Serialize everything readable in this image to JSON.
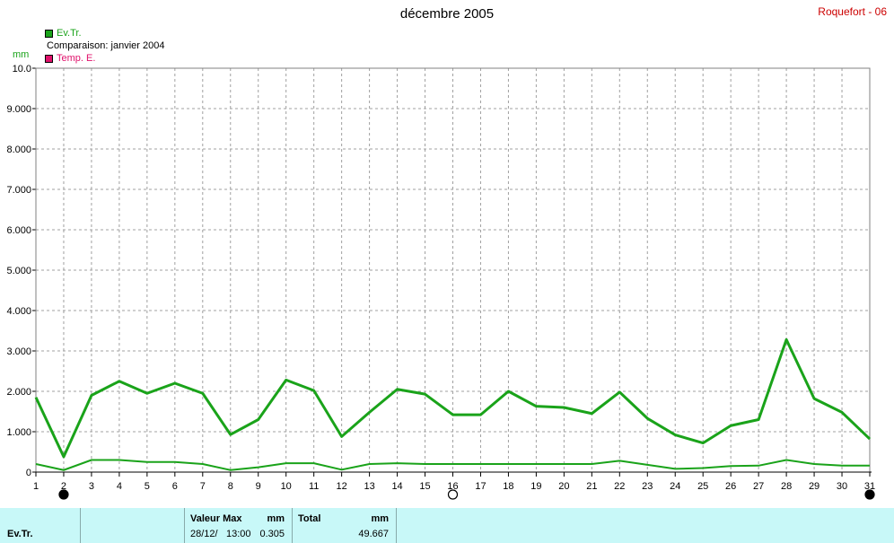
{
  "title": "décembre 2005",
  "station": "Roquefort - 06",
  "legend": [
    {
      "label": "Ev.Tr.",
      "color": "#1aa31a"
    },
    {
      "label": "Comparaison: janvier 2004",
      "color": null
    },
    {
      "label": "Temp. E.",
      "color": "#e0116b"
    }
  ],
  "unit": "mm",
  "chart_data": {
    "type": "line",
    "x": [
      1,
      2,
      3,
      4,
      5,
      6,
      7,
      8,
      9,
      10,
      11,
      12,
      13,
      14,
      15,
      16,
      17,
      18,
      19,
      20,
      21,
      22,
      23,
      24,
      25,
      26,
      27,
      28,
      29,
      30,
      31
    ],
    "ylim": [
      0,
      10
    ],
    "yticks": [
      "0",
      "1.000",
      "2.000",
      "3.000",
      "4.000",
      "5.000",
      "6.000",
      "7.000",
      "8.000",
      "9.000",
      "10.0"
    ],
    "grid": true,
    "series": [
      {
        "name": "Ev.Tr.",
        "color": "#1aa31a",
        "values": [
          1.85,
          0.38,
          1.9,
          2.25,
          1.95,
          2.2,
          1.95,
          0.93,
          1.3,
          2.28,
          2.02,
          0.88,
          1.48,
          2.05,
          1.93,
          1.42,
          1.42,
          2.0,
          1.63,
          1.6,
          1.45,
          1.98,
          1.33,
          0.92,
          0.72,
          1.15,
          1.3,
          3.28,
          1.82,
          1.48,
          0.82
        ]
      },
      {
        "name": "Comparaison: janvier 2004",
        "color": "#1aa31a",
        "values": [
          0.2,
          0.05,
          0.3,
          0.3,
          0.25,
          0.25,
          0.2,
          0.05,
          0.12,
          0.22,
          0.22,
          0.06,
          0.2,
          0.22,
          0.2,
          0.2,
          0.2,
          0.2,
          0.2,
          0.2,
          0.2,
          0.28,
          0.18,
          0.08,
          0.1,
          0.15,
          0.16,
          0.3,
          0.2,
          0.16,
          0.16
        ]
      }
    ],
    "moon_phases": [
      {
        "day": 2,
        "phase": "new-moon"
      },
      {
        "day": 16,
        "phase": "full-moon"
      },
      {
        "day": 31,
        "phase": "new-moon"
      }
    ]
  },
  "footer": {
    "row_label": "Ev.Tr.",
    "max_label": "Valeur Max",
    "max_unit": "mm",
    "max_date": "28/12/",
    "max_time": "13:00",
    "max_value": "0.305",
    "total_label": "Total",
    "total_unit": "mm",
    "total_value": "49.667"
  }
}
